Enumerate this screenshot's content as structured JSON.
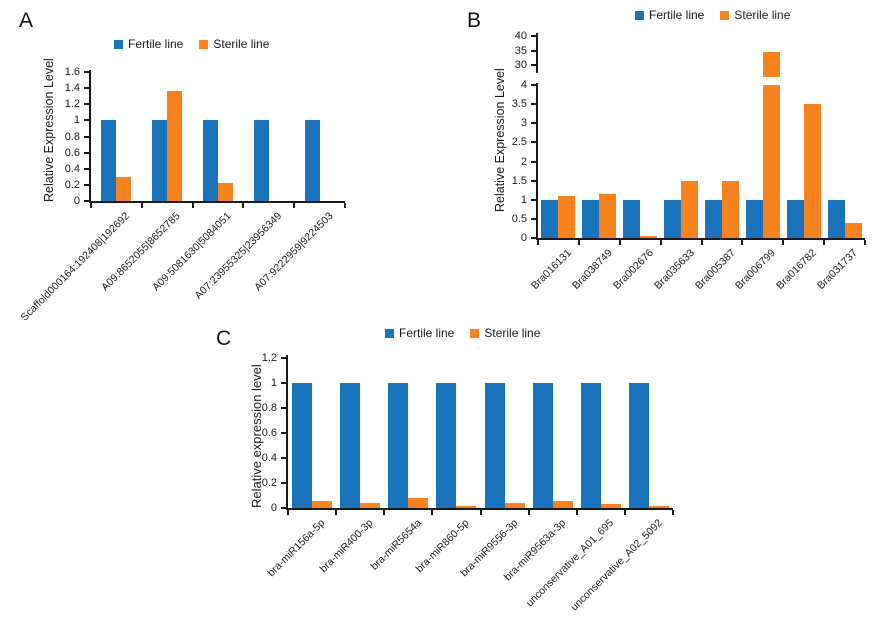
{
  "figure": {
    "background": "#ffffff",
    "colors": {
      "fertile": "#1B73BC",
      "sterile": "#F8821E",
      "axis": "#1a1a1a",
      "text": "#1a1a1a"
    }
  },
  "legend": {
    "fertile_label": "Fertile line",
    "sterile_label": "Sterile line"
  },
  "chart_data": [
    {
      "id": "A",
      "type": "bar",
      "panel_label": "A",
      "title": "",
      "xlabel": "",
      "ylabel": "Relative Expression Level",
      "ylim": [
        0,
        1.6
      ],
      "yticks": [
        0,
        0.2,
        0.4,
        0.6,
        0.8,
        1,
        1.2,
        1.4,
        1.6
      ],
      "ytick_labels": [
        "0",
        "0.2",
        "0.4",
        "0.6",
        "0.8",
        "1",
        "1.2",
        "1.4",
        "1.6"
      ],
      "grid": false,
      "legend_position": "top",
      "categories": [
        "Scaffold000164:192408|192692",
        "A09:8652055|8652785",
        "A09:5081630|5084051",
        "A07:23955325|23956349",
        "A07:9222959|9224503"
      ],
      "series": [
        {
          "name": "Fertile line",
          "color_key": "fertile",
          "values": [
            1,
            1,
            1,
            1,
            1
          ]
        },
        {
          "name": "Sterile line",
          "color_key": "sterile",
          "values": [
            0.3,
            1.37,
            0.22,
            0,
            0
          ]
        }
      ]
    },
    {
      "id": "B",
      "type": "bar",
      "panel_label": "B",
      "title": "",
      "xlabel": "",
      "ylabel": "Relative Expression Level",
      "axis_break": true,
      "lower_ylim": [
        0,
        4
      ],
      "lower_yticks": [
        0,
        0.5,
        1,
        1.5,
        2,
        2.5,
        3,
        3.5,
        4
      ],
      "lower_ytick_labels": [
        "0",
        "0.5",
        "1",
        "1.5",
        "2",
        "2.5",
        "3",
        "3.5",
        "4"
      ],
      "upper_yticks": [
        30,
        35,
        40
      ],
      "upper_ytick_labels": [
        "30",
        "35",
        "40"
      ],
      "grid": false,
      "legend_position": "top",
      "categories": [
        "Bra016131",
        "Bra038749",
        "Bra002676",
        "Bra035633",
        "Bra005387",
        "Bra006799",
        "Bra016782",
        "Bra031737"
      ],
      "series": [
        {
          "name": "Fertile line",
          "color_key": "fertile",
          "values": [
            1,
            1,
            1,
            1,
            1,
            1,
            1,
            1
          ]
        },
        {
          "name": "Sterile line",
          "color_key": "sterile",
          "values": [
            1.1,
            1.15,
            0.05,
            1.5,
            1.5,
            34.5,
            3.5,
            0.4
          ]
        }
      ]
    },
    {
      "id": "C",
      "type": "bar",
      "panel_label": "C",
      "title": "",
      "xlabel": "",
      "ylabel": "Relative expression level",
      "ylim": [
        0,
        1.2
      ],
      "yticks": [
        0,
        0.2,
        0.4,
        0.6,
        0.8,
        1,
        1.2
      ],
      "ytick_labels": [
        "0",
        "0.2",
        "0.4",
        "0.6",
        "0.8",
        "1",
        "1.2"
      ],
      "grid": false,
      "legend_position": "top",
      "categories": [
        "bra-miR156a-5p",
        "bra-miR400-3p",
        "bra-miR5654a",
        "bra-miR860-5p",
        "bra-miR9556-3p",
        "bra-miR9563a-3p",
        "unconservative_A01_695",
        "unconservative_A02_5092"
      ],
      "series": [
        {
          "name": "Fertile line",
          "color_key": "fertile",
          "values": [
            1,
            1,
            1,
            1,
            1,
            1,
            1,
            1
          ]
        },
        {
          "name": "Sterile line",
          "color_key": "sterile",
          "values": [
            0.06,
            0.04,
            0.08,
            0.02,
            0.04,
            0.06,
            0.03,
            0.02
          ]
        }
      ]
    }
  ]
}
